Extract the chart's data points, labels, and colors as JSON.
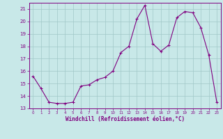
{
  "x": [
    0,
    1,
    2,
    3,
    4,
    5,
    6,
    7,
    8,
    9,
    10,
    11,
    12,
    13,
    14,
    15,
    16,
    17,
    18,
    19,
    20,
    21,
    22,
    23
  ],
  "y": [
    15.6,
    14.6,
    13.5,
    13.4,
    13.4,
    13.5,
    14.8,
    14.9,
    15.3,
    15.5,
    16.0,
    17.5,
    18.0,
    20.2,
    21.3,
    18.2,
    17.6,
    18.1,
    20.3,
    20.8,
    20.7,
    19.5,
    17.3,
    13.5
  ],
  "color": "#800080",
  "bg_color": "#c8e8e8",
  "grid_color": "#a0c8c8",
  "xlabel": "Windchill (Refroidissement éolien,°C)",
  "ylim": [
    13,
    21.5
  ],
  "xlim": [
    -0.5,
    23.5
  ],
  "yticks": [
    13,
    14,
    15,
    16,
    17,
    18,
    19,
    20,
    21
  ],
  "xticks": [
    0,
    1,
    2,
    3,
    4,
    5,
    6,
    7,
    8,
    9,
    10,
    11,
    12,
    13,
    14,
    15,
    16,
    17,
    18,
    19,
    20,
    21,
    22,
    23
  ],
  "marker": "+"
}
